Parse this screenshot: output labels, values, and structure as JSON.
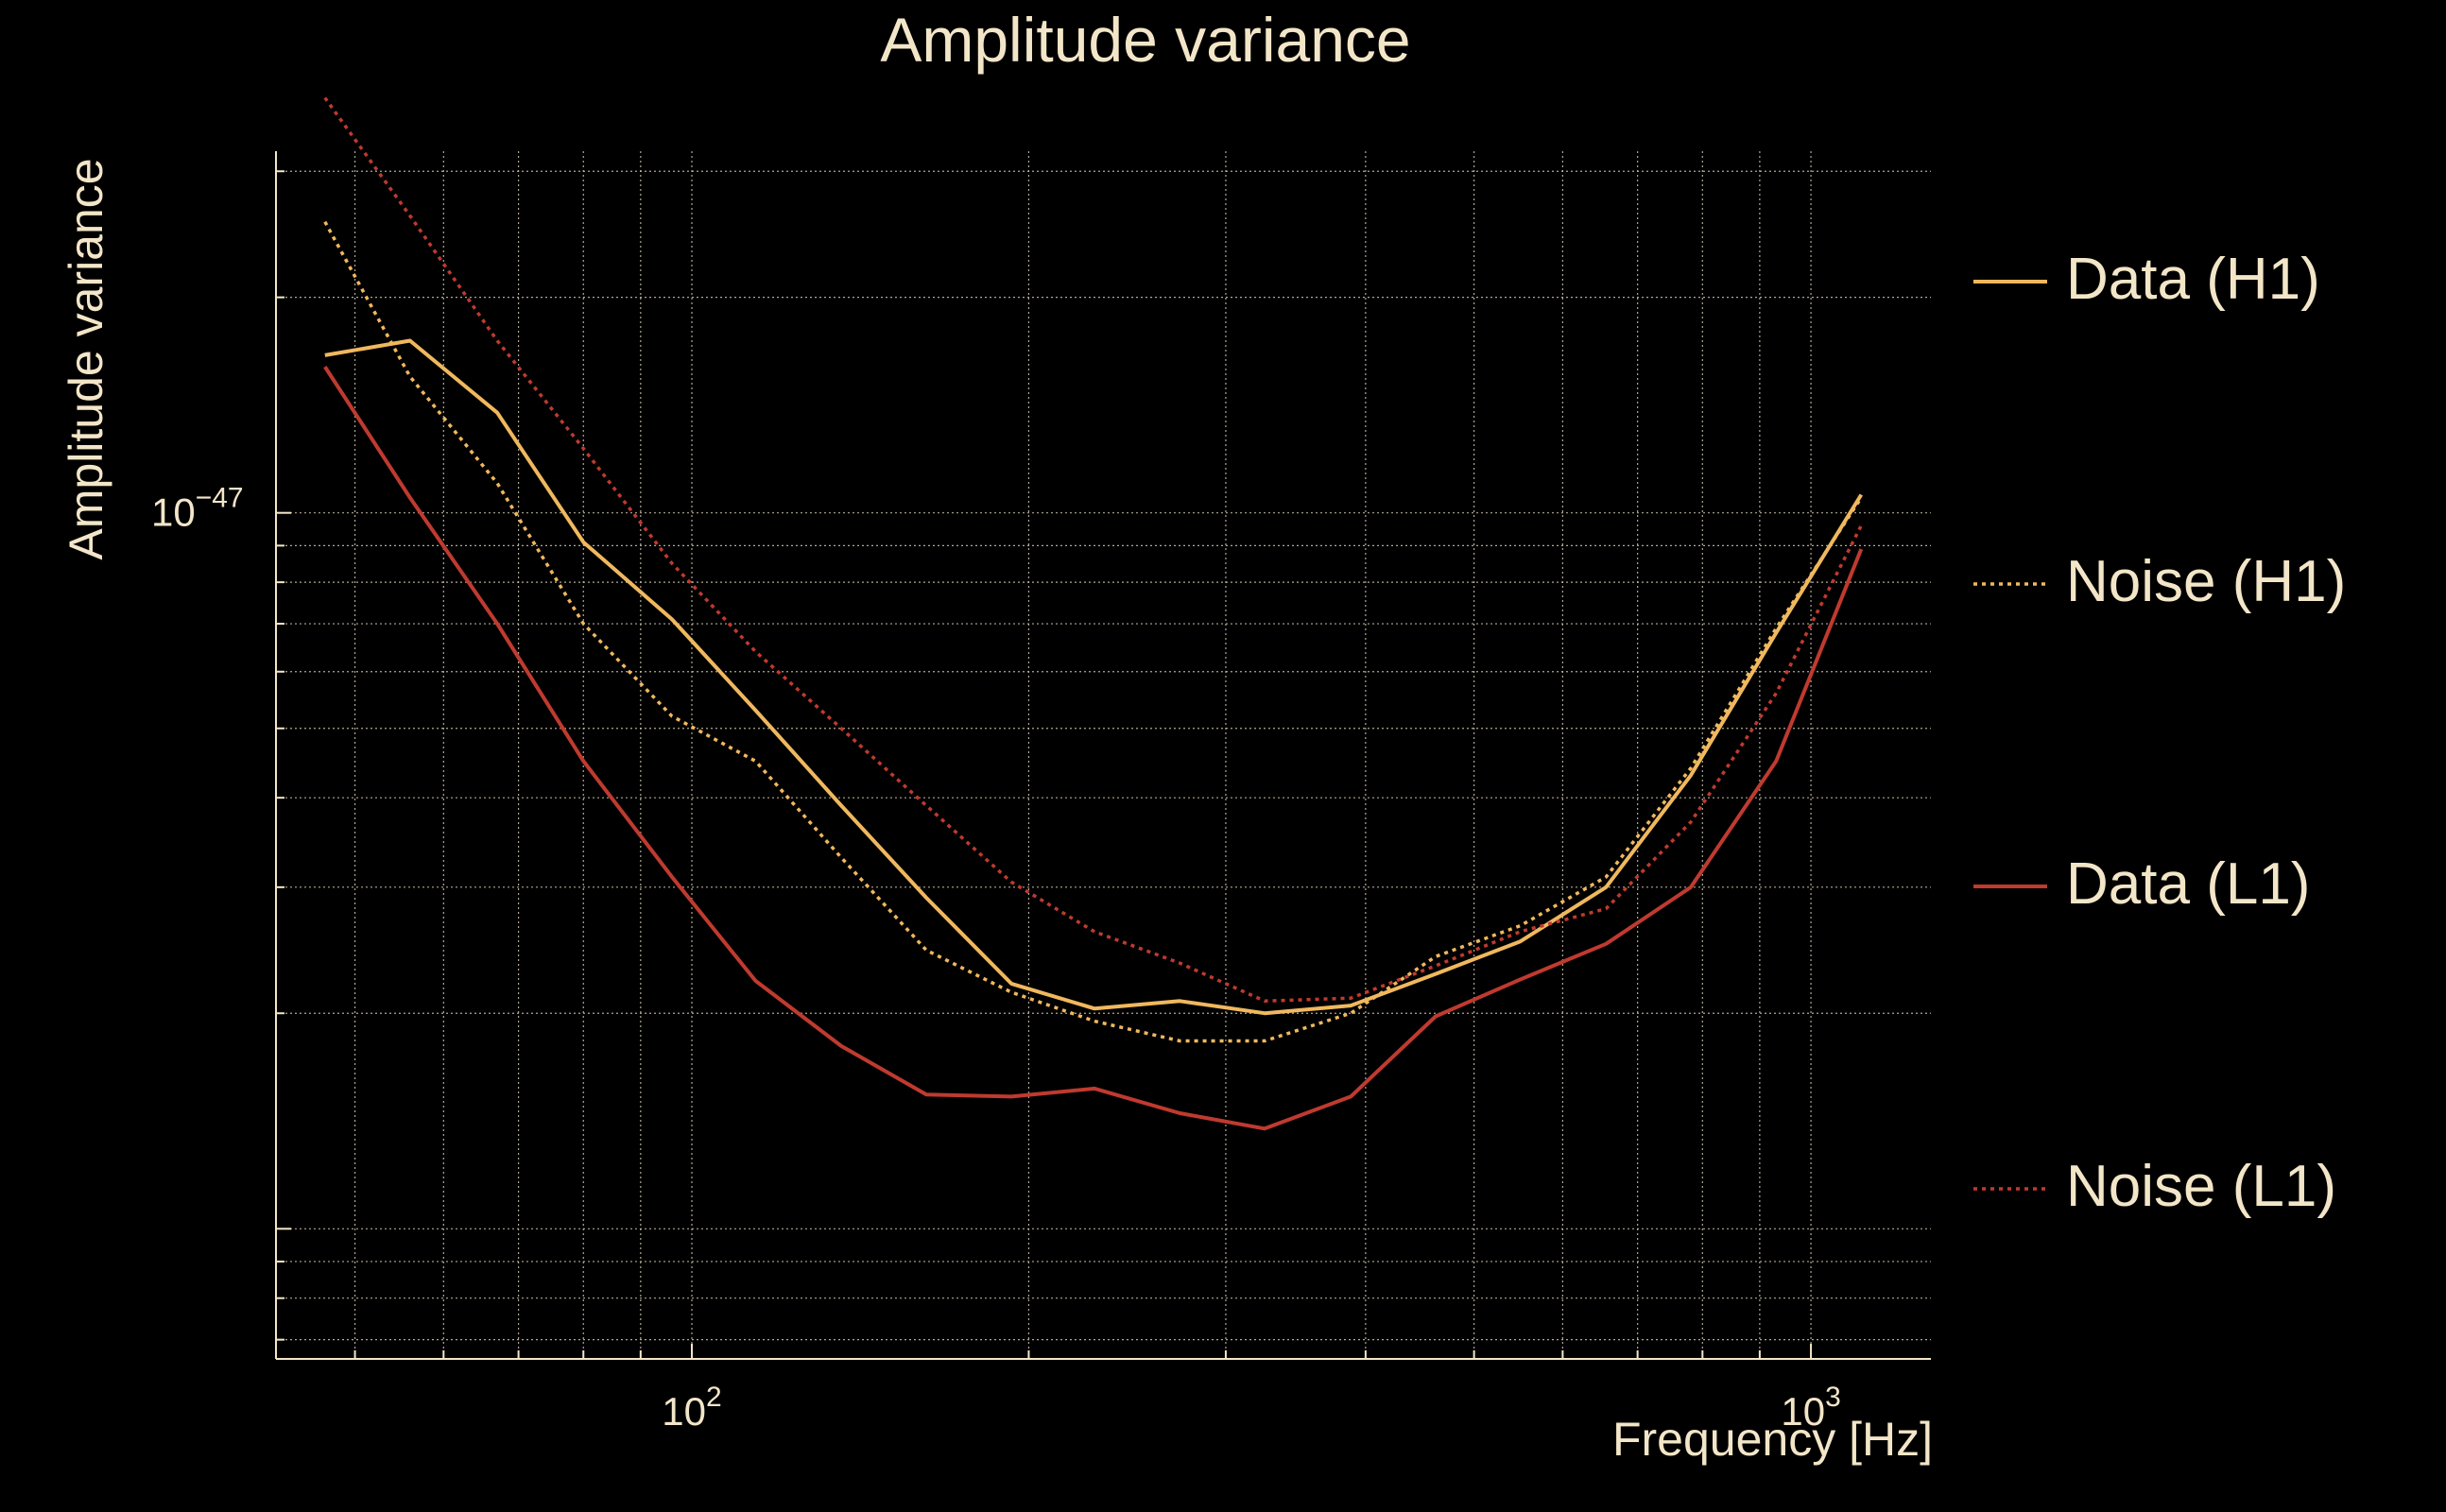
{
  "chart_data": {
    "type": "line",
    "title": "Amplitude variance",
    "xlabel": "Frequency [Hz]",
    "ylabel": "Amplitude variance",
    "xscale": "log",
    "yscale": "log",
    "xlim": [
      42.5,
      1280
    ],
    "ylim": [
      6.58e-49,
      3.2e-47
    ],
    "grid": true,
    "legend_position": "right",
    "x_ticks": [
      {
        "value": 100,
        "base": "10",
        "exp": "2"
      },
      {
        "value": 1000,
        "base": "10",
        "exp": "3"
      }
    ],
    "y_ticks": [
      {
        "value": 1e-47,
        "base": "10",
        "exp": "−47"
      }
    ],
    "series": [
      {
        "name": "Data (H1)",
        "color": "#f0b85e",
        "style": "solid",
        "x": [
          47,
          56,
          67,
          80,
          96,
          114,
          136,
          162,
          193,
          229,
          273,
          325,
          388,
          462,
          550,
          656,
          781,
          931,
          1109
        ],
        "y": [
          1.66e-47,
          1.74e-47,
          1.38e-47,
          9.1e-48,
          7.1e-48,
          5.3e-48,
          3.9e-48,
          2.9e-48,
          2.2e-48,
          2.03e-48,
          2.08e-48,
          2e-48,
          2.05e-48,
          2.27e-48,
          2.52e-48,
          3e-48,
          4.3e-48,
          6.8e-48,
          1.06e-47
        ]
      },
      {
        "name": "Noise (H1)",
        "color": "#f0b85e",
        "style": "dotted",
        "x": [
          47,
          56,
          67,
          80,
          96,
          114,
          136,
          162,
          193,
          229,
          273,
          325,
          388,
          462,
          550,
          656,
          781,
          931,
          1109
        ],
        "y": [
          2.55e-47,
          1.55e-47,
          1.1e-47,
          7e-48,
          5.2e-48,
          4.5e-48,
          3.3e-48,
          2.45e-48,
          2.14e-48,
          1.95e-48,
          1.83e-48,
          1.83e-48,
          2e-48,
          2.4e-48,
          2.65e-48,
          3.1e-48,
          4.4e-48,
          6.9e-48,
          1.05e-47
        ]
      },
      {
        "name": "Data (L1)",
        "color": "#bf3a2f",
        "style": "solid",
        "x": [
          47,
          56,
          67,
          80,
          96,
          114,
          136,
          162,
          193,
          229,
          273,
          325,
          388,
          462,
          550,
          656,
          781,
          931,
          1109
        ],
        "y": [
          1.6e-47,
          1.05e-47,
          7e-48,
          4.5e-48,
          3.1e-48,
          2.22e-48,
          1.8e-48,
          1.54e-48,
          1.53e-48,
          1.57e-48,
          1.45e-48,
          1.38e-48,
          1.53e-48,
          1.98e-48,
          2.23e-48,
          2.5e-48,
          3e-48,
          4.5e-48,
          8.9e-48
        ]
      },
      {
        "name": "Noise (L1)",
        "color": "#bf3a2f",
        "style": "dotted",
        "x": [
          47,
          56,
          67,
          80,
          96,
          114,
          136,
          162,
          193,
          229,
          273,
          325,
          388,
          462,
          550,
          656,
          781,
          931,
          1109
        ],
        "y": [
          3.8e-47,
          2.6e-47,
          1.74e-47,
          1.23e-47,
          8.5e-48,
          6.4e-48,
          5e-48,
          3.9e-48,
          3.05e-48,
          2.6e-48,
          2.35e-48,
          2.08e-48,
          2.1e-48,
          2.33e-48,
          2.6e-48,
          2.8e-48,
          3.7e-48,
          5.6e-48,
          9.6e-48
        ]
      }
    ]
  }
}
